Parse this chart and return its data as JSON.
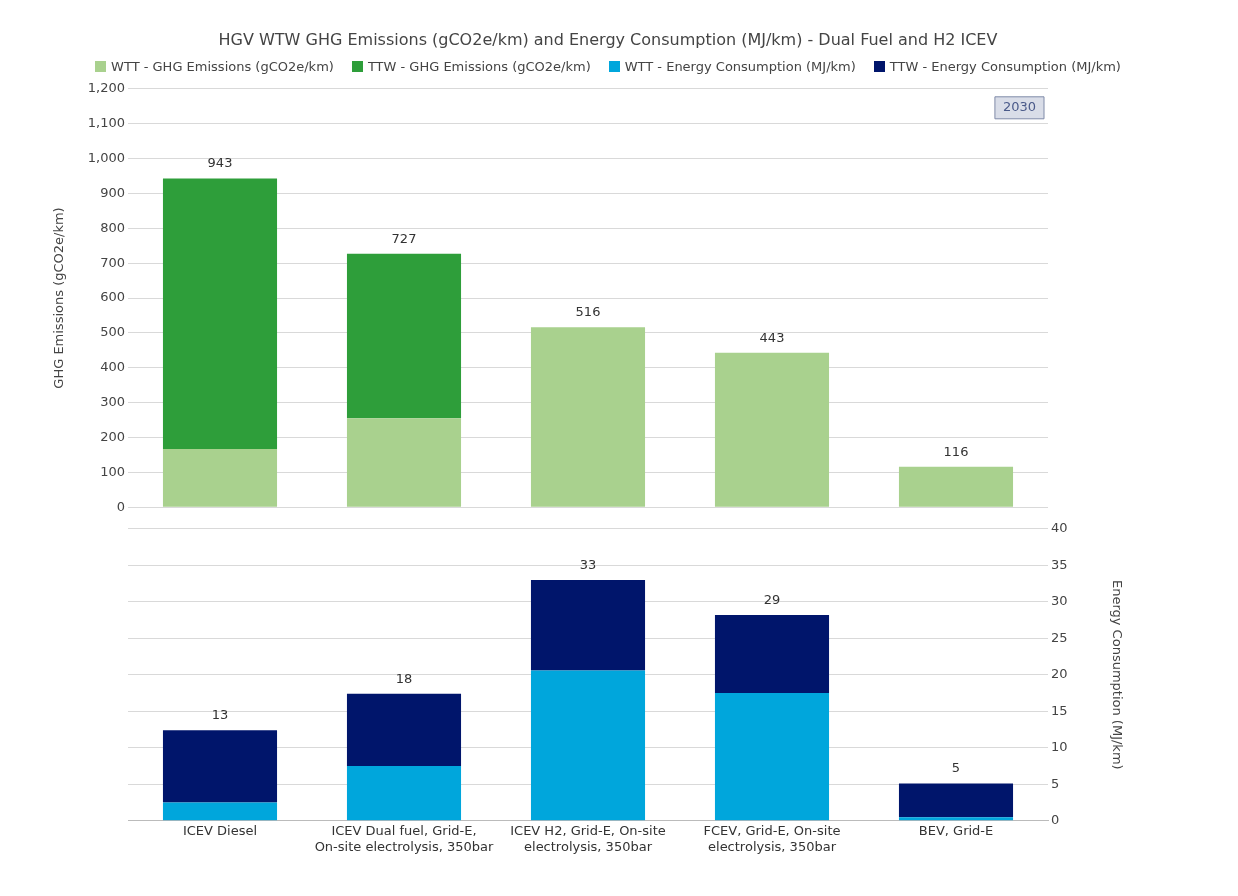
{
  "chart_data": [
    {
      "type": "bar",
      "title": "HGV WTW GHG Emissions (gCO2e/km) and Energy Consumption (MJ/km) - Dual Fuel and H2 ICEV",
      "ylabel": "GHG Emissions (gCO2e/km)",
      "categories": [
        null,
        null,
        null,
        null,
        null
      ],
      "stacked": true,
      "legend": "top",
      "grid": "y",
      "tick_labels": "y",
      "series": [
        {
          "name": "WTT - GHG Emissions (gCO2e/km)",
          "color": "#a9d18e",
          "values": [
            167,
            255,
            516,
            443,
            116
          ]
        },
        {
          "name": "TTW - GHG Emissions (gCO2e/km)",
          "color": "#2e9e3a",
          "values": [
            776,
            472,
            null,
            null,
            null
          ]
        }
      ],
      "totals": [
        "943",
        "727",
        "516",
        "443",
        "116"
      ],
      "ylim": [
        0,
        1200
      ],
      "yticks": [
        0,
        100,
        200,
        300,
        400,
        500,
        600,
        700,
        800,
        900,
        {
          "value": 1000,
          "label": "1,000"
        },
        {
          "value": 1100,
          "label": "1,100"
        },
        {
          "value": 1200,
          "label": "1,200"
        }
      ],
      "annotations": [
        "2030"
      ]
    },
    {
      "type": "bar",
      "y2label": "Energy Consumption (MJ/km)",
      "categories": [
        "ICEV Diesel",
        "ICEV Dual fuel, Grid-E, On-site electrolysis, 350bar",
        "ICEV H2, Grid-E, On-site electrolysis, 350bar",
        "FCEV, Grid-E, On-site electrolysis, 350bar",
        "BEV, Grid-E"
      ],
      "stacked": true,
      "legend": "top",
      "grid": "y",
      "series": [
        {
          "name": "WTT - Energy Consumption (MJ/km)",
          "color": "#00a6dc",
          "values": [
            2.5,
            7.5,
            20.6,
            17.5,
            0.5
          ],
          "axis": "y2"
        },
        {
          "name": "TTW - Energy Consumption (MJ/km)",
          "color": "#00156b",
          "values": [
            9.9,
            9.9,
            12.4,
            10.7,
            4.6
          ],
          "axis": "y2"
        }
      ],
      "totals": [
        "13",
        "18",
        "33",
        "29",
        "5"
      ],
      "y2lim": [
        0,
        40
      ],
      "y2ticks": [
        0,
        5,
        10,
        15,
        20,
        25,
        30,
        35,
        40
      ]
    }
  ]
}
